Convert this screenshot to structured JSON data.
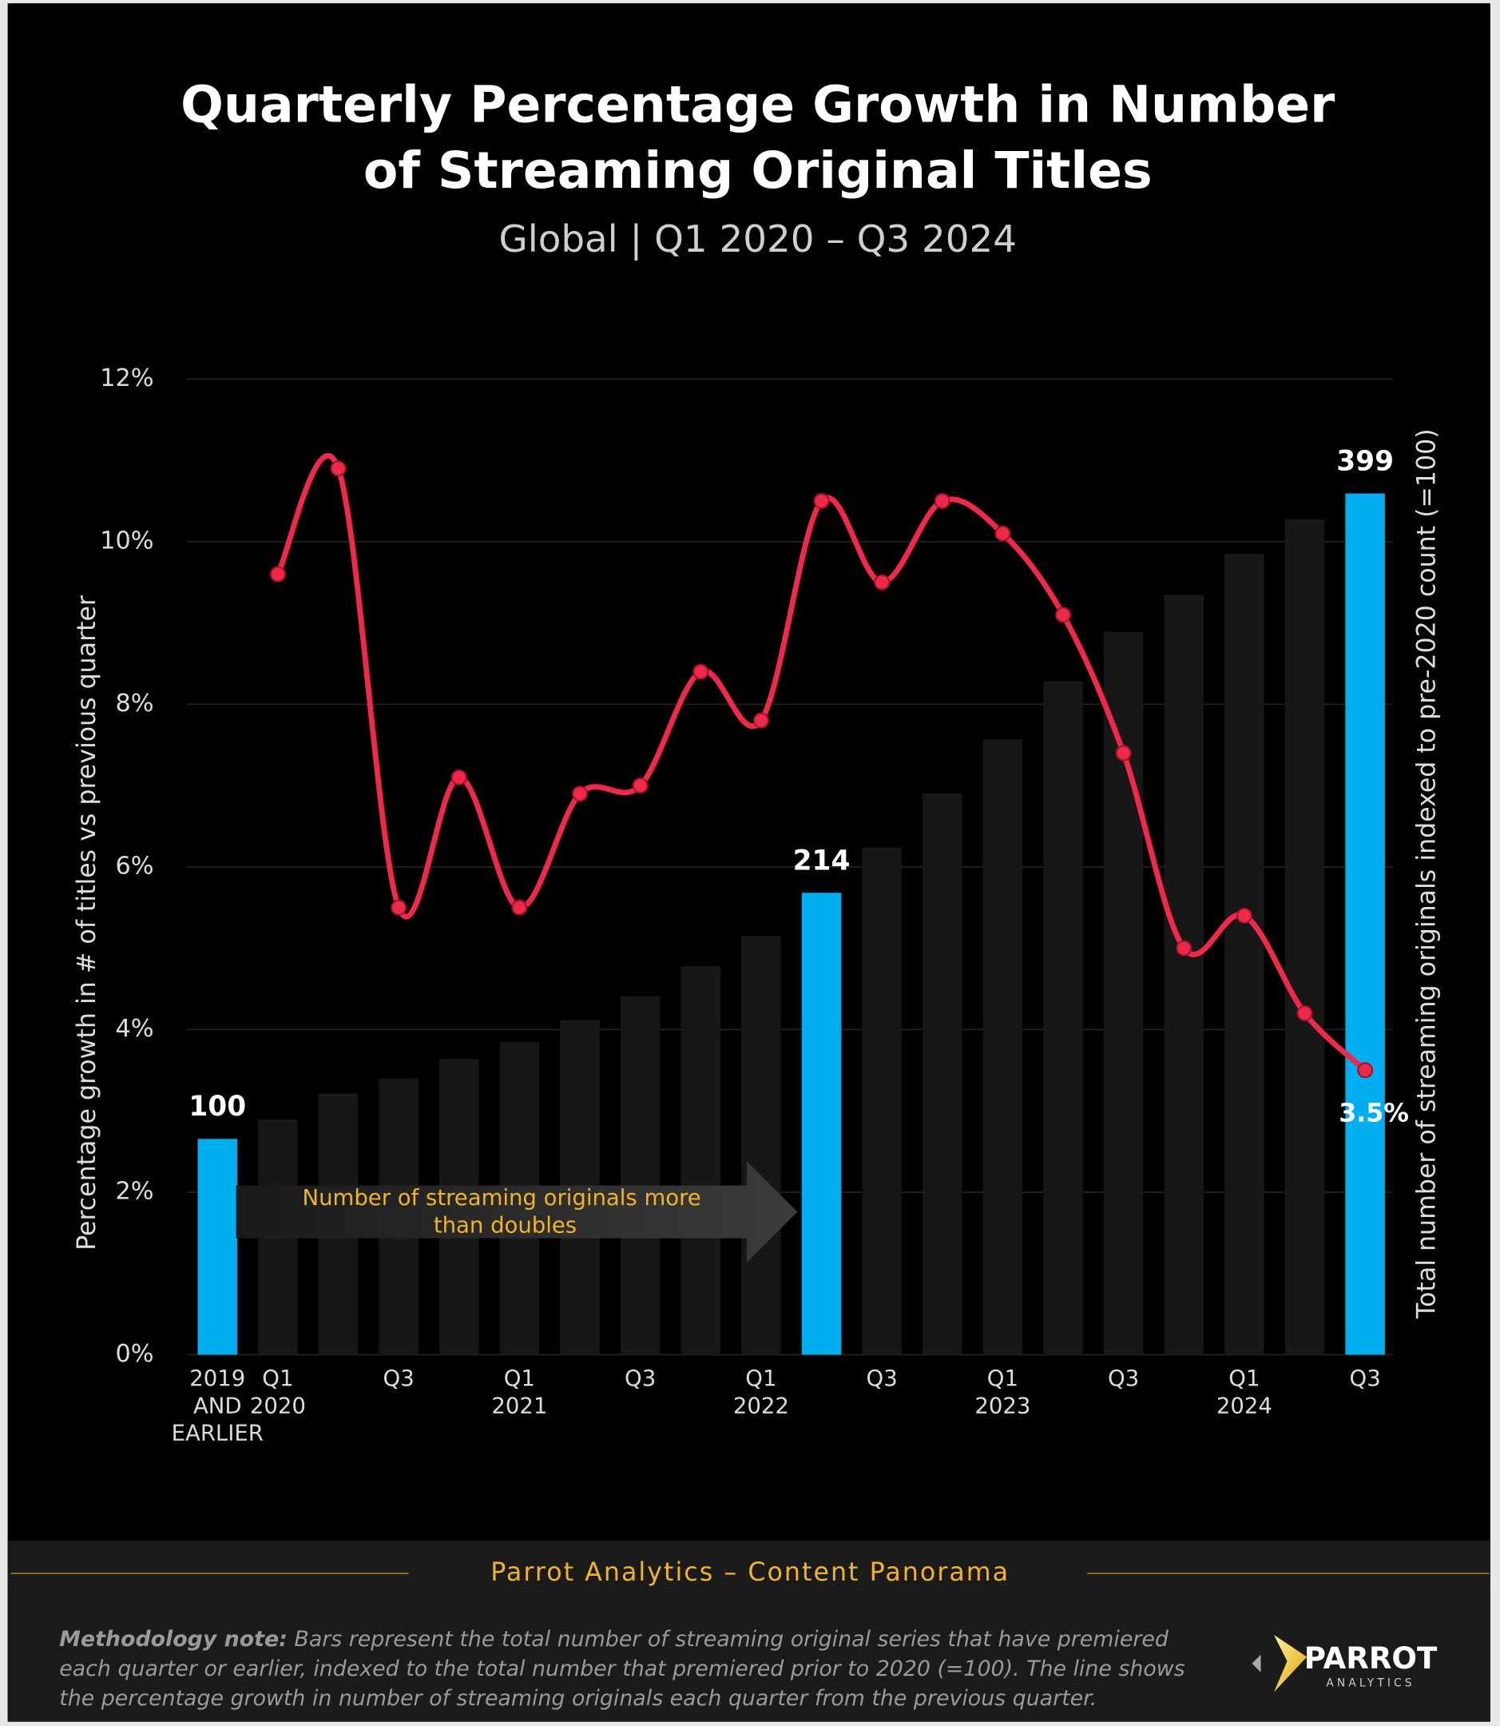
{
  "chart_data": {
    "type": "bar",
    "title": "Quarterly Percentage Growth in Number of Streaming Original Titles",
    "subtitle": "Global | Q1 2020 – Q3 2024",
    "ylabel": "Percentage growth in # of titles vs previous quarter",
    "y2label": "Total number of streaming originals indexed to pre-2020 count (=100)",
    "annotation": "Number of streaming originals more than doubles",
    "categories": [
      "2019 AND EARLIER",
      "Q1 2020",
      null,
      "Q3",
      null,
      "Q1 2021",
      null,
      "Q3",
      null,
      "Q1 2022",
      null,
      "Q3",
      null,
      "Q1 2023",
      null,
      "Q3",
      null,
      "Q1 2024",
      null,
      "Q3"
    ],
    "series": [
      {
        "type": "bar",
        "axis": "y2",
        "colors": [
          "#00aeef",
          "#171717",
          "#171717",
          "#171717",
          "#171717",
          "#171717",
          "#171717",
          "#171717",
          "#171717",
          "#171717",
          "#00aeef",
          "#171717",
          "#171717",
          "#171717",
          "#171717",
          "#171717",
          "#171717",
          "#171717",
          "#171717",
          "#00aeef"
        ],
        "values": [
          100,
          109,
          121,
          128,
          137,
          145,
          155,
          166,
          180,
          194,
          214,
          235,
          260,
          285,
          312,
          335,
          352,
          371,
          387,
          399
        ],
        "value_labels": [
          "100",
          null,
          null,
          null,
          null,
          null,
          null,
          null,
          null,
          null,
          "214",
          null,
          null,
          null,
          null,
          null,
          null,
          null,
          null,
          "399"
        ]
      },
      {
        "type": "line",
        "axis": "y",
        "color": "#f0284a",
        "values": [
          null,
          9.6,
          10.9,
          5.5,
          7.1,
          5.5,
          6.9,
          7.0,
          8.4,
          7.8,
          10.5,
          9.5,
          10.5,
          10.1,
          9.1,
          7.4,
          5.0,
          5.4,
          4.2,
          3.5
        ],
        "value_labels": [
          null,
          null,
          null,
          null,
          null,
          null,
          null,
          null,
          null,
          null,
          null,
          null,
          null,
          null,
          null,
          null,
          null,
          null,
          null,
          "3.5%"
        ]
      }
    ],
    "ylim": [
      0,
      12
    ],
    "yticks": [
      {
        "value": 0,
        "label": "0%"
      },
      {
        "value": 2,
        "label": "2%"
      },
      {
        "value": 4,
        "label": "4%"
      },
      {
        "value": 6,
        "label": "6%"
      },
      {
        "value": 8,
        "label": "8%"
      },
      {
        "value": 10,
        "label": "10%"
      },
      {
        "value": 12,
        "label": "12%"
      }
    ],
    "y2lim": [
      0,
      452
    ],
    "grid": true
  },
  "footer": {
    "source": "Parrot Analytics – Content Panorama",
    "methodology_label": "Methodology note:",
    "methodology_text": "Bars represent the total number of streaming original series that have premiered each quarter or earlier, indexed to the total number that premiered prior to 2020 (=100).  The line shows the percentage growth in number of streaming originals each quarter from the previous quarter.",
    "logo": "PARROT",
    "logo_sub": "ANALYTICS"
  }
}
